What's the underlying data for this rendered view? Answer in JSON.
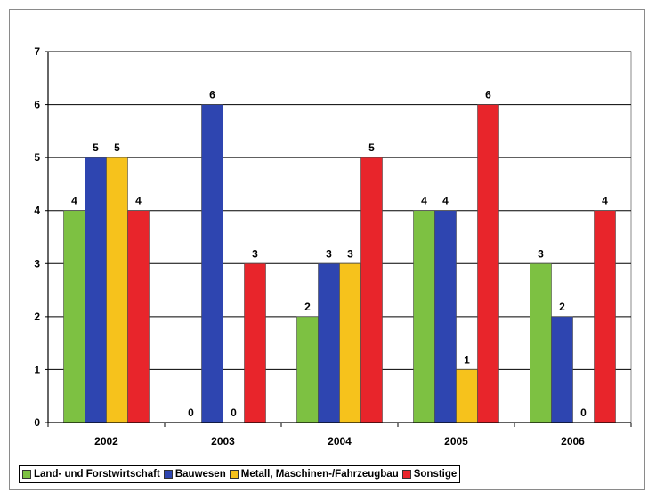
{
  "chart_data": {
    "type": "bar",
    "title": "",
    "xlabel": "",
    "ylabel": "",
    "categories": [
      "2002",
      "2003",
      "2004",
      "2005",
      "2006"
    ],
    "ylim": [
      0,
      7
    ],
    "yticks": [
      "0",
      "1",
      "2",
      "3",
      "4",
      "5",
      "6",
      "7"
    ],
    "grid": true,
    "legend_position": "bottom",
    "series": [
      {
        "name": "Land- und Forstwirtschaft",
        "color": "#7dc142",
        "values": [
          4,
          0,
          2,
          4,
          3
        ]
      },
      {
        "name": "Bauwesen",
        "color": "#2e45b0",
        "values": [
          5,
          6,
          3,
          4,
          2
        ]
      },
      {
        "name": "Metall, Maschinen-/Fahrzeugbau",
        "color": "#f6c21c",
        "values": [
          5,
          0,
          3,
          1,
          0
        ]
      },
      {
        "name": "Sonstige",
        "color": "#e8252b",
        "values": [
          4,
          3,
          5,
          6,
          4
        ]
      }
    ]
  }
}
